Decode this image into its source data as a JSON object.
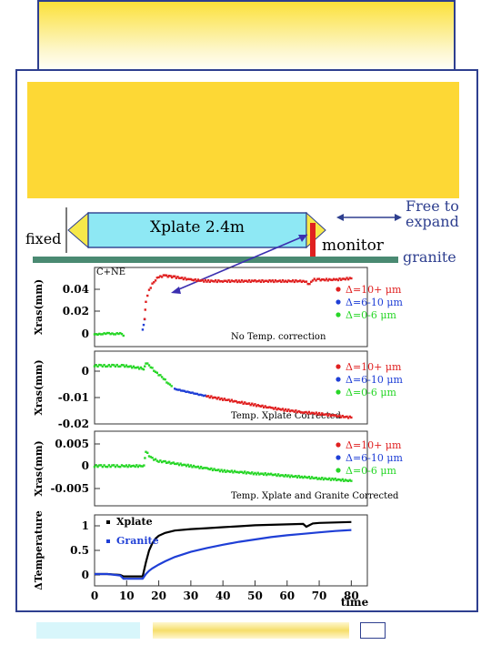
{
  "labels": {
    "fixed": "fixed",
    "xplate": "Xplate 2.4m",
    "monitor": "monitor",
    "free_to_expand_1": "Free to",
    "free_to_expand_2": "expand",
    "granite": "granite",
    "plot_tag": "C+NE"
  },
  "colors": {
    "frame": "#2e3f8f",
    "yellow": "#fdd835",
    "xplate_fill": "#8ee8f4",
    "arrow_tip": "#f6e84a",
    "granite_bar": "#4a8a72",
    "monitor_bar": "#e02020",
    "red": "#e02020",
    "blue": "#1f3fd6",
    "green": "#27d627",
    "black": "#000000"
  },
  "legend": [
    "Δ=10+ μm",
    "Δ=6-10 μm",
    "Δ=0-6 μm"
  ],
  "chart_data": [
    {
      "type": "scatter",
      "ylabel": "Xras(mm)",
      "note": "No Temp. correction",
      "yticks": [
        "0.04",
        "0.02",
        "0"
      ],
      "ylim": [
        -0.008,
        0.05
      ],
      "series": [
        {
          "name": "Δ=0-6 μm",
          "x": [
            0,
            2,
            4,
            6,
            8,
            9
          ],
          "y": [
            0.001,
            0.001,
            0.002,
            0.001,
            0.002,
            0.0
          ]
        },
        {
          "name": "Δ=6-10 μm",
          "x": [
            15,
            15.6
          ],
          "y": [
            0.005,
            0.012
          ]
        },
        {
          "name": "Δ=10+ μm",
          "x": [
            15.6,
            16,
            17,
            18,
            19,
            20,
            22,
            25,
            30,
            35,
            40,
            45,
            50,
            55,
            60,
            65,
            66,
            67,
            68,
            70,
            75,
            80
          ],
          "y": [
            0.012,
            0.025,
            0.033,
            0.038,
            0.041,
            0.043,
            0.044,
            0.043,
            0.041,
            0.04,
            0.04,
            0.04,
            0.04,
            0.04,
            0.04,
            0.04,
            0.039,
            0.038,
            0.041,
            0.041,
            0.041,
            0.042
          ]
        }
      ]
    },
    {
      "type": "scatter",
      "ylabel": "Xras(mm)",
      "note": "Temp. Xplate Corrected",
      "yticks": [
        "0",
        "-0.01",
        "-0.02"
      ],
      "ylim": [
        -0.02,
        0.005
      ],
      "series": [
        {
          "name": "Δ=0-6 μm",
          "x": [
            0,
            2,
            4,
            6,
            8,
            9,
            15.3,
            16,
            17,
            18,
            19,
            20,
            21,
            22,
            23,
            24
          ],
          "y": [
            0.0,
            0.0,
            0.0,
            0.0,
            0.0,
            0.0,
            -0.001,
            0.001,
            0.0,
            -0.001,
            -0.002,
            -0.003,
            -0.004,
            -0.005,
            -0.006,
            -0.007
          ]
        },
        {
          "name": "Δ=6-10 μm",
          "x": [
            25,
            27,
            29,
            31,
            33,
            35
          ],
          "y": [
            -0.008,
            -0.0085,
            -0.009,
            -0.0095,
            -0.01,
            -0.0105
          ]
        },
        {
          "name": "Δ=10+ μm",
          "x": [
            35,
            40,
            45,
            50,
            55,
            60,
            65,
            70,
            75,
            80
          ],
          "y": [
            -0.0105,
            -0.0115,
            -0.0125,
            -0.0135,
            -0.0145,
            -0.0153,
            -0.016,
            -0.0165,
            -0.0172,
            -0.0178
          ]
        }
      ]
    },
    {
      "type": "scatter",
      "ylabel": "Xras(mm)",
      "note": "Temp. Xplate and Granite Corrected",
      "yticks": [
        "0.005",
        "0",
        "-0.005"
      ],
      "ylim": [
        -0.008,
        0.007
      ],
      "series": [
        {
          "name": "Δ=0-6 μm",
          "x": [
            0,
            2,
            4,
            6,
            8,
            9,
            15.4,
            16,
            17,
            18,
            20,
            22,
            25,
            30,
            35,
            40,
            45,
            50,
            55,
            60,
            65,
            70,
            75,
            80
          ],
          "y": [
            0.0,
            0.0,
            0.0,
            0.0,
            0.0,
            0.0,
            0.0,
            0.003,
            0.002,
            0.0015,
            0.001,
            0.0008,
            0.0005,
            0.0,
            -0.0005,
            -0.001,
            -0.0012,
            -0.0015,
            -0.0017,
            -0.002,
            -0.0022,
            -0.0025,
            -0.0027,
            -0.003
          ]
        }
      ]
    },
    {
      "type": "line",
      "ylabel": "ΔTemperature",
      "xlabel": "time",
      "yticks": [
        "1",
        "0.5",
        "0"
      ],
      "xticks": [
        "0",
        "10",
        "20",
        "30",
        "40",
        "50",
        "60",
        "70",
        "80"
      ],
      "xlim": [
        0,
        85
      ],
      "ylim": [
        -0.2,
        1.3
      ],
      "series": [
        {
          "name": "Xplate",
          "color": "#000000",
          "x": [
            0,
            4,
            8,
            9,
            15,
            16,
            17,
            18,
            19,
            20,
            22,
            25,
            30,
            35,
            40,
            45,
            50,
            55,
            60,
            65,
            66,
            68,
            70,
            75,
            80
          ],
          "y": [
            0.05,
            0.05,
            0.03,
            0.0,
            0.0,
            0.3,
            0.55,
            0.7,
            0.8,
            0.86,
            0.92,
            0.97,
            1.0,
            1.02,
            1.04,
            1.06,
            1.08,
            1.09,
            1.1,
            1.11,
            1.05,
            1.12,
            1.13,
            1.14,
            1.15
          ]
        },
        {
          "name": "Granite",
          "color": "#1f3fd6",
          "x": [
            0,
            4,
            8,
            9,
            15,
            16,
            17,
            18,
            20,
            22,
            25,
            30,
            35,
            40,
            45,
            50,
            55,
            60,
            65,
            70,
            75,
            80
          ],
          "y": [
            0.05,
            0.05,
            0.02,
            -0.05,
            -0.05,
            0.05,
            0.12,
            0.17,
            0.25,
            0.32,
            0.41,
            0.52,
            0.6,
            0.67,
            0.73,
            0.78,
            0.83,
            0.87,
            0.9,
            0.93,
            0.96,
            0.98
          ]
        }
      ]
    }
  ]
}
